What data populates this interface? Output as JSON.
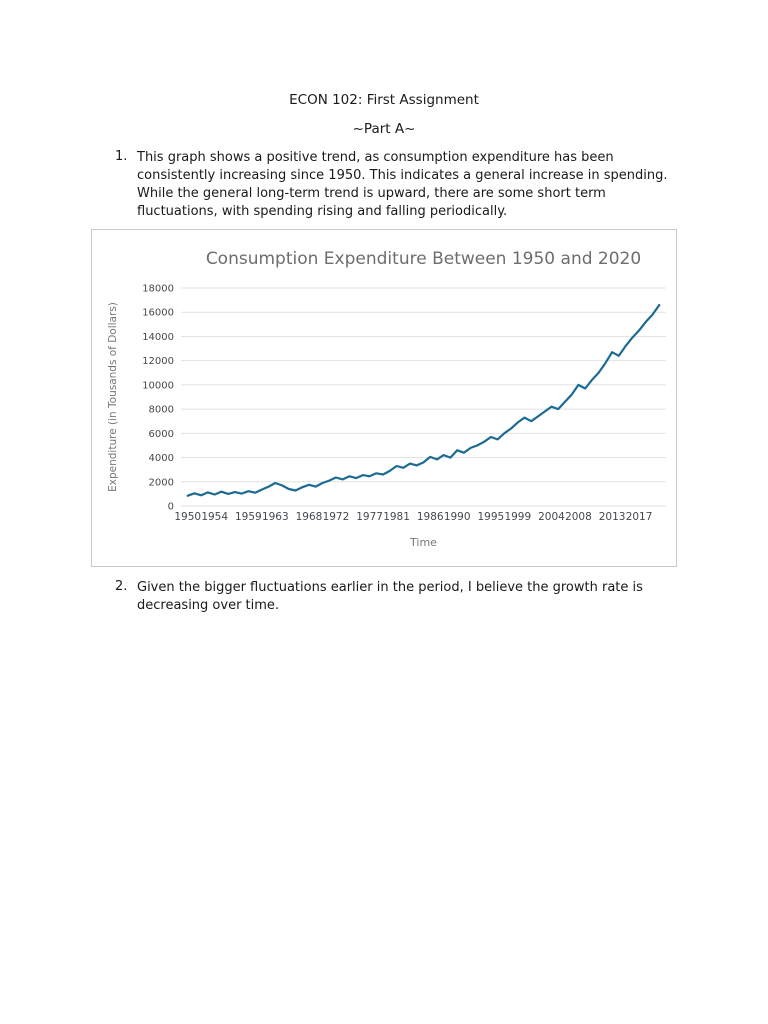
{
  "page": {
    "title": "ECON 102: First Assignment",
    "subtitle": "~Part A~"
  },
  "items": [
    {
      "number": "1.",
      "text": "This graph shows a positive trend, as consumption expenditure has been consistently increasing since 1950. This indicates a general increase in spending. While the general long-term trend is upward, there are some short term fluctuations, with spending rising and falling periodically."
    },
    {
      "number": "2.",
      "text": "Given the bigger fluctuations earlier in the period, I believe the growth rate is decreasing over time."
    }
  ],
  "chart_data": {
    "type": "line",
    "title": "Consumption Expenditure Between 1950 and 2020",
    "xlabel": "Time",
    "ylabel": "Expenditure (in Tousands of Dollars)",
    "x": [
      1950,
      1951,
      1952,
      1953,
      1954,
      1955,
      1956,
      1957,
      1958,
      1959,
      1960,
      1961,
      1962,
      1963,
      1964,
      1965,
      1966,
      1967,
      1968,
      1969,
      1970,
      1971,
      1972,
      1973,
      1974,
      1975,
      1976,
      1977,
      1978,
      1979,
      1980,
      1981,
      1982,
      1983,
      1984,
      1985,
      1986,
      1987,
      1988,
      1989,
      1990,
      1991,
      1992,
      1993,
      1994,
      1995,
      1996,
      1997,
      1998,
      1999,
      2000,
      2001,
      2002,
      2003,
      2004,
      2005,
      2006,
      2007,
      2008,
      2009,
      2010,
      2011,
      2012,
      2013,
      2014,
      2015,
      2016,
      2017,
      2018,
      2019,
      2020
    ],
    "values": [
      850,
      1050,
      880,
      1120,
      950,
      1180,
      1000,
      1150,
      1020,
      1220,
      1100,
      1350,
      1600,
      1900,
      1700,
      1400,
      1280,
      1550,
      1750,
      1600,
      1900,
      2100,
      2350,
      2200,
      2450,
      2300,
      2550,
      2450,
      2700,
      2600,
      2900,
      3300,
      3150,
      3500,
      3350,
      3600,
      4050,
      3850,
      4200,
      4000,
      4600,
      4400,
      4800,
      5000,
      5300,
      5700,
      5500,
      6000,
      6400,
      6900,
      7300,
      7000,
      7400,
      7800,
      8200,
      8000,
      8600,
      9200,
      10000,
      9700,
      10400,
      11000,
      11800,
      12700,
      12400,
      13200,
      13900,
      14500,
      15200,
      15800,
      16600
    ],
    "xticks": [
      1950,
      1954,
      1959,
      1963,
      1968,
      1972,
      1977,
      1981,
      1986,
      1990,
      1995,
      1999,
      2004,
      2008,
      2013,
      2017
    ],
    "yticks": [
      0,
      2000,
      4000,
      6000,
      8000,
      10000,
      12000,
      14000,
      16000,
      18000
    ],
    "xlim": [
      1949,
      2021
    ],
    "ylim": [
      0,
      18000
    ],
    "grid": true,
    "legend": "none",
    "line_color": "#1c6b93",
    "grid_color": "#e2e2e2",
    "title_color": "#6d6d6d",
    "axis_label_color": "#75787b",
    "tick_color": "#45494e"
  }
}
